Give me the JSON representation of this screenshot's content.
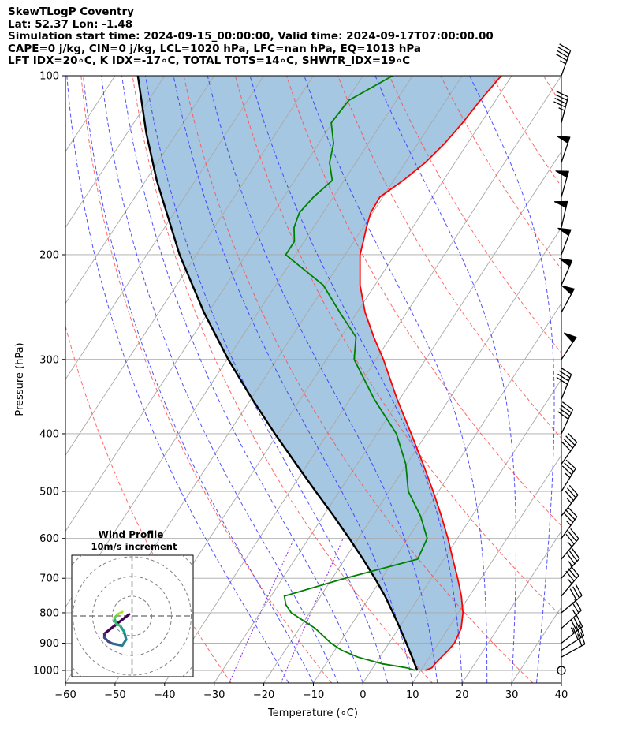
{
  "header": {
    "line1": "SkewTLogP Coventry",
    "line2": "Lat: 52.37   Lon: -1.48",
    "line3": "Simulation start time: 2024-09-15_00:00:00, Valid time: 2024-09-17T07:00:00.00",
    "line4": "CAPE=0 j/kg, CIN=0 j/kg, LCL=1020 hPa, LFC=nan hPa, EQ=1013 hPa",
    "line5": "LFT IDX=20∘C, K IDX=-17∘C, TOTAL TOTS=14∘C, SHWTR_IDX=19∘C"
  },
  "colors": {
    "temperature": "#ff0000",
    "dewpoint": "#008000",
    "parcel": "#000000",
    "cin_shade": "#a0c4e0",
    "dry_adiabat": "#ff4d4d",
    "moist_adiabat": "#3333ff",
    "mixing_ratio": "#8a2be2",
    "isotherm": "#a8a8a8"
  },
  "chart_data": {
    "type": "skewt-logp",
    "xlabel": "Temperature (∘C)",
    "ylabel": "Pressure (hPa)",
    "xlim": [
      -60,
      40
    ],
    "ylim": [
      1050,
      100
    ],
    "x_ticks": [
      -60,
      -50,
      -40,
      -30,
      -20,
      -10,
      0,
      10,
      20,
      30,
      40
    ],
    "x_tick_labels": [
      "−60",
      "−50",
      "−40",
      "−30",
      "−20",
      "−10",
      "0",
      "10",
      "20",
      "30",
      "40"
    ],
    "y_ticks": [
      1000,
      900,
      800,
      700,
      600,
      500,
      400,
      300,
      200,
      100
    ],
    "grid": true,
    "temperature": {
      "p": [
        1000,
        990,
        975,
        950,
        925,
        900,
        850,
        800,
        750,
        700,
        650,
        600,
        550,
        500,
        450,
        400,
        350,
        300,
        275,
        250,
        225,
        200,
        190,
        180,
        170,
        160,
        150,
        140,
        130,
        120,
        110,
        100
      ],
      "t": [
        10.9,
        11.9,
        12.0,
        12.4,
        12.9,
        13.2,
        12.6,
        10.9,
        8.4,
        5.3,
        1.8,
        -1.9,
        -6.2,
        -11.1,
        -16.7,
        -23.1,
        -30.5,
        -38.5,
        -43.4,
        -48.4,
        -53.0,
        -57.0,
        -58.1,
        -59.3,
        -60.4,
        -60.6,
        -58.1,
        -56.0,
        -54.6,
        -53.7,
        -53.1,
        -52.1
      ]
    },
    "dewpoint": {
      "p": [
        1000,
        990,
        975,
        950,
        925,
        900,
        850,
        800,
        775,
        750,
        700,
        650,
        600,
        550,
        500,
        450,
        400,
        350,
        300,
        275,
        250,
        225,
        200,
        190,
        180,
        170,
        160,
        150,
        140,
        130,
        120,
        110,
        100
      ],
      "td": [
        8.9,
        6.8,
        1.4,
        -4.4,
        -8.6,
        -11.7,
        -16.8,
        -23.7,
        -25.9,
        -27.3,
        -17.4,
        -5.3,
        -6.1,
        -10.4,
        -16.1,
        -20.2,
        -26.1,
        -35.1,
        -44.4,
        -47.0,
        -53.5,
        -60.4,
        -72.0,
        -72.0,
        -73.9,
        -74.8,
        -74.0,
        -72.4,
        -75.3,
        -77.0,
        -80.2,
        -79.6,
        -74.0
      ]
    },
    "parcel": {
      "p": [
        1000,
        950,
        900,
        850,
        800,
        750,
        700,
        650,
        600,
        550,
        500,
        450,
        400,
        350,
        300,
        250,
        200,
        150,
        125,
        100
      ],
      "t": [
        9.3,
        6.5,
        3.5,
        0.3,
        -3.2,
        -7.0,
        -11.4,
        -16.3,
        -21.8,
        -27.9,
        -34.8,
        -42.3,
        -50.6,
        -59.7,
        -69.8,
        -80.9,
        -93.4,
        -107.8,
        -116.1,
        -125.4
      ]
    },
    "dry_adiabats_theta_C": [
      -30,
      -10,
      10,
      30,
      50,
      70,
      90,
      110,
      130,
      150,
      170,
      190
    ],
    "moist_adiabats_start_C": [
      -15,
      -10,
      -5,
      0,
      5,
      10,
      15,
      20,
      25,
      30,
      35
    ],
    "mixing_ratios_gkg": [
      0.4,
      1
    ],
    "winds": [
      {
        "p": 1000,
        "u": -1.5,
        "v": 0.8
      },
      {
        "p": 950,
        "u": -9,
        "v": -5
      },
      {
        "p": 925,
        "u": -14,
        "v": -9
      },
      {
        "p": 900,
        "u": -14,
        "v": -11
      },
      {
        "p": 850,
        "u": -10,
        "v": -9
      },
      {
        "p": 800,
        "u": -12,
        "v": -10
      },
      {
        "p": 750,
        "u": -11,
        "v": -13
      },
      {
        "p": 700,
        "u": -12,
        "v": -13
      },
      {
        "p": 650,
        "u": -11,
        "v": -13
      },
      {
        "p": 600,
        "u": -10,
        "v": -14
      },
      {
        "p": 550,
        "u": -11,
        "v": -14
      },
      {
        "p": 500,
        "u": -10,
        "v": -16
      },
      {
        "p": 450,
        "u": -12,
        "v": -17
      },
      {
        "p": 400,
        "u": -9,
        "v": -19
      },
      {
        "p": 350,
        "u": -8,
        "v": -20
      },
      {
        "p": 300,
        "u": -14,
        "v": -21
      },
      {
        "p": 250,
        "u": -12,
        "v": -22
      },
      {
        "p": 225,
        "u": -10,
        "v": -23
      },
      {
        "p": 200,
        "u": -9,
        "v": -24
      },
      {
        "p": 180,
        "u": -6,
        "v": -26
      },
      {
        "p": 160,
        "u": -7,
        "v": -25
      },
      {
        "p": 140,
        "u": -8,
        "v": -24
      },
      {
        "p": 120,
        "u": -6,
        "v": -23
      },
      {
        "p": 100,
        "u": -8,
        "v": -22
      }
    ],
    "hodograph": {
      "title": "Wind Profile",
      "subtitle": "10m/s increment",
      "increment_ms": 10,
      "ring_count": 4,
      "u": [
        -1.5,
        -9,
        -14,
        -14,
        -12,
        -10,
        -5,
        -3,
        -4,
        -6,
        -8,
        -9,
        -7,
        -5
      ],
      "v": [
        0.8,
        -5,
        -9,
        -11,
        -13,
        -14,
        -15,
        -12,
        -8,
        -5,
        -4,
        -1,
        1,
        2
      ]
    }
  }
}
